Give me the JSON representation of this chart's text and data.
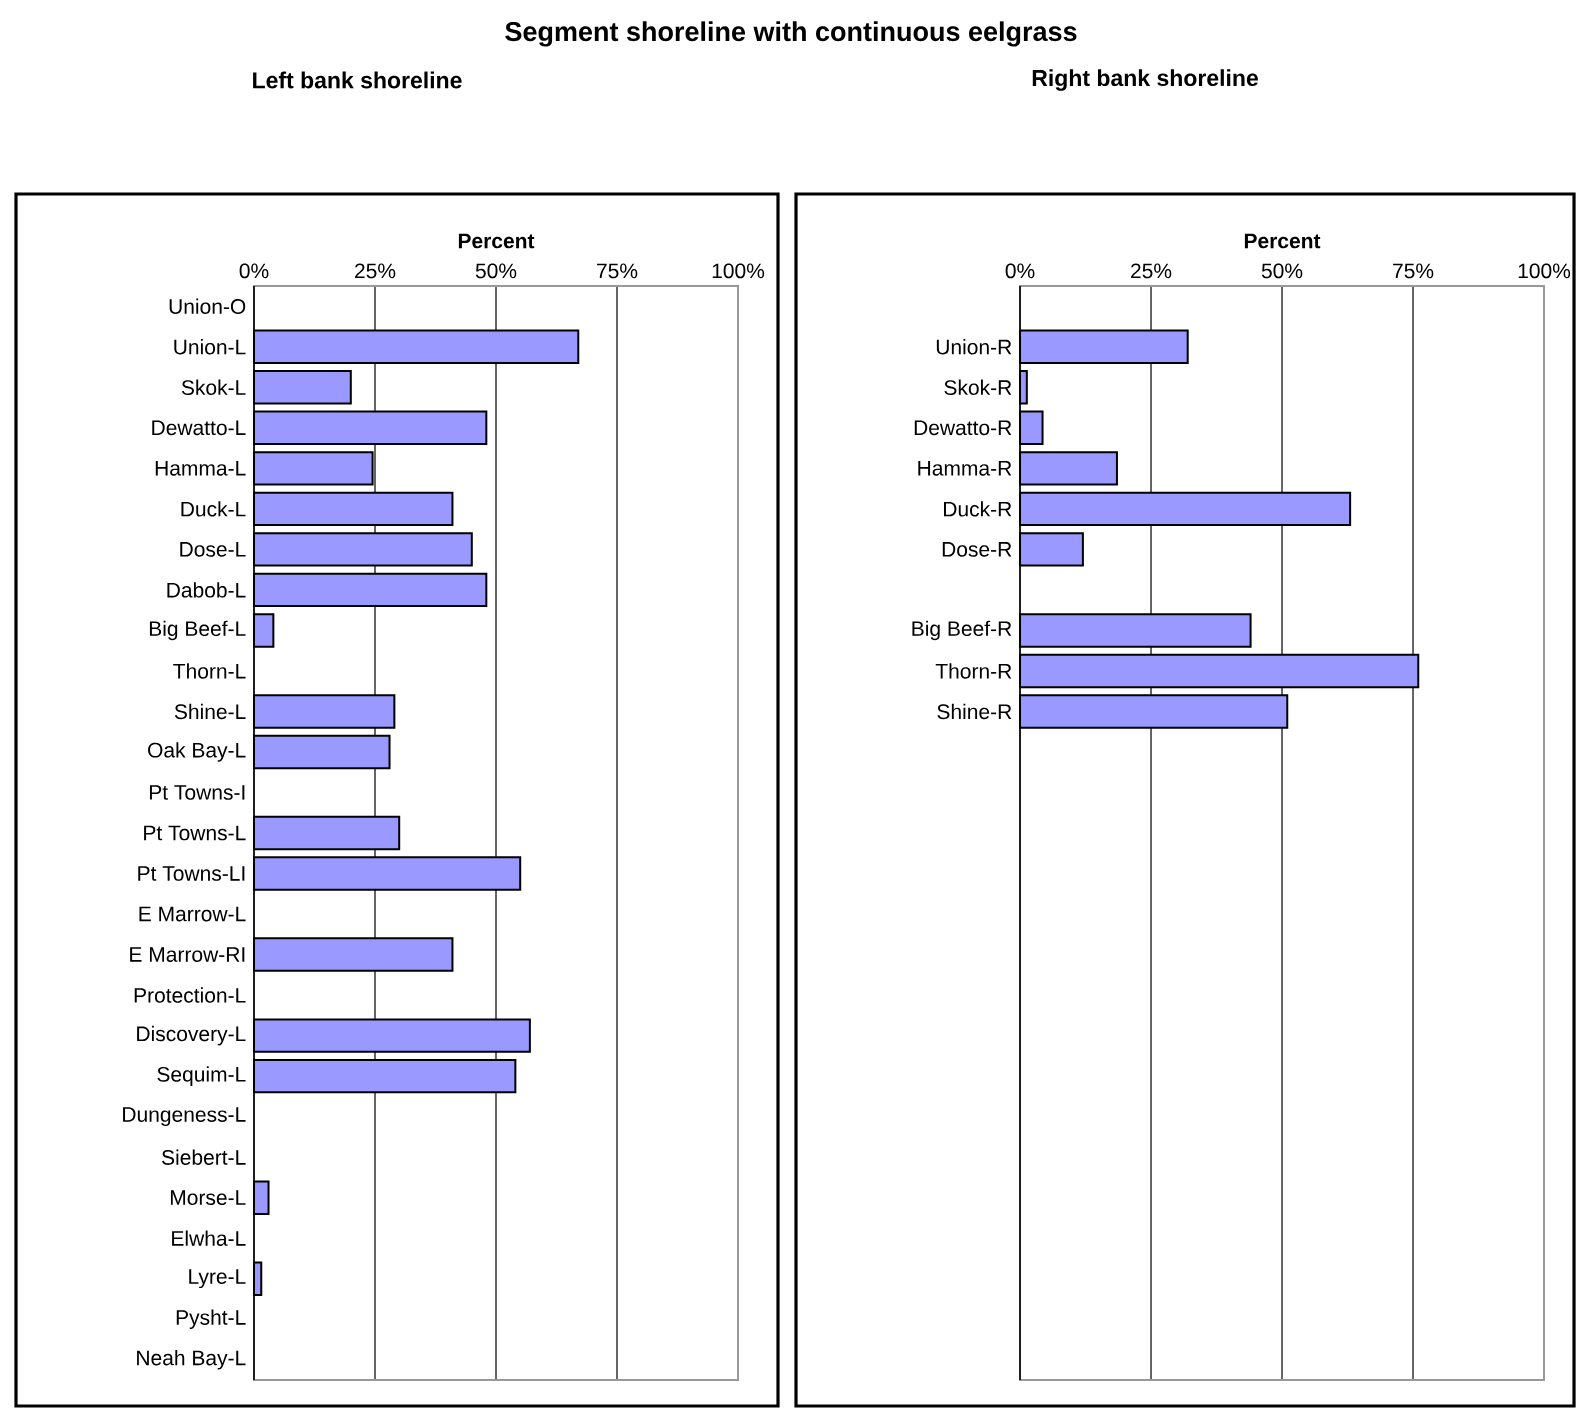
{
  "chart_data": [
    {
      "type": "bar",
      "orientation": "horizontal",
      "title": "Segment shoreline with continuous eelgrass",
      "subtitle": "Left bank shoreline",
      "xlabel": "Percent",
      "categories": [
        "Union-O",
        "Union-L",
        "Skok-L",
        "Dewatto-L",
        "Hamma-L",
        "Duck-L",
        "Dose-L",
        "Dabob-L",
        "Big Beef-L",
        "Thorn-L",
        "Shine-L",
        "Oak Bay-L",
        "Pt Towns-I",
        "Pt Towns-L",
        "Pt Towns-LI",
        "E Marrow-L",
        "E Marrow-RI",
        "Protection-L",
        "Discovery-L",
        "Sequim-L",
        "Dungeness-L",
        "Siebert-L",
        "Morse-L",
        "Elwha-L",
        "Lyre-L",
        "Pysht-L",
        "Neah Bay-L"
      ],
      "values": [
        null,
        67,
        20,
        48,
        24.5,
        41,
        45,
        48,
        4,
        null,
        29,
        28,
        null,
        30,
        55,
        null,
        41,
        null,
        57,
        54,
        null,
        null,
        3,
        null,
        1.5,
        null,
        null
      ],
      "color": "#9999ff",
      "xlim": [
        0,
        100
      ],
      "xticks": [
        {
          "value": 0,
          "label": "0%"
        },
        {
          "value": 25,
          "label": "25%"
        },
        {
          "value": 50,
          "label": "50%"
        },
        {
          "value": 75,
          "label": "75%"
        },
        {
          "value": 100,
          "label": "100%"
        }
      ],
      "grid": "x"
    },
    {
      "type": "bar",
      "orientation": "horizontal",
      "subtitle": "Right bank shoreline",
      "xlabel": "Percent",
      "categories": [
        null,
        "Union-R",
        "Skok-R",
        "Dewatto-R",
        "Hamma-R",
        "Duck-R",
        "Dose-R",
        null,
        "Big Beef-R",
        "Thorn-R",
        "Shine-R",
        null,
        null,
        null,
        null,
        null,
        null,
        null,
        null,
        null,
        null,
        null,
        null,
        null,
        null,
        null,
        null
      ],
      "values": [
        null,
        32,
        1.3,
        4.3,
        18.5,
        63,
        12,
        null,
        44,
        76,
        51,
        null,
        null,
        null,
        null,
        null,
        null,
        null,
        null,
        null,
        null,
        null,
        null,
        null,
        null,
        null,
        null
      ],
      "color": "#9999ff",
      "xlim": [
        0,
        100
      ],
      "xticks": [
        {
          "value": 0,
          "label": "0%"
        },
        {
          "value": 25,
          "label": "25%"
        },
        {
          "value": 50,
          "label": "50%"
        },
        {
          "value": 75,
          "label": "75%"
        },
        {
          "value": 100,
          "label": "100%"
        }
      ],
      "grid": "x"
    }
  ]
}
